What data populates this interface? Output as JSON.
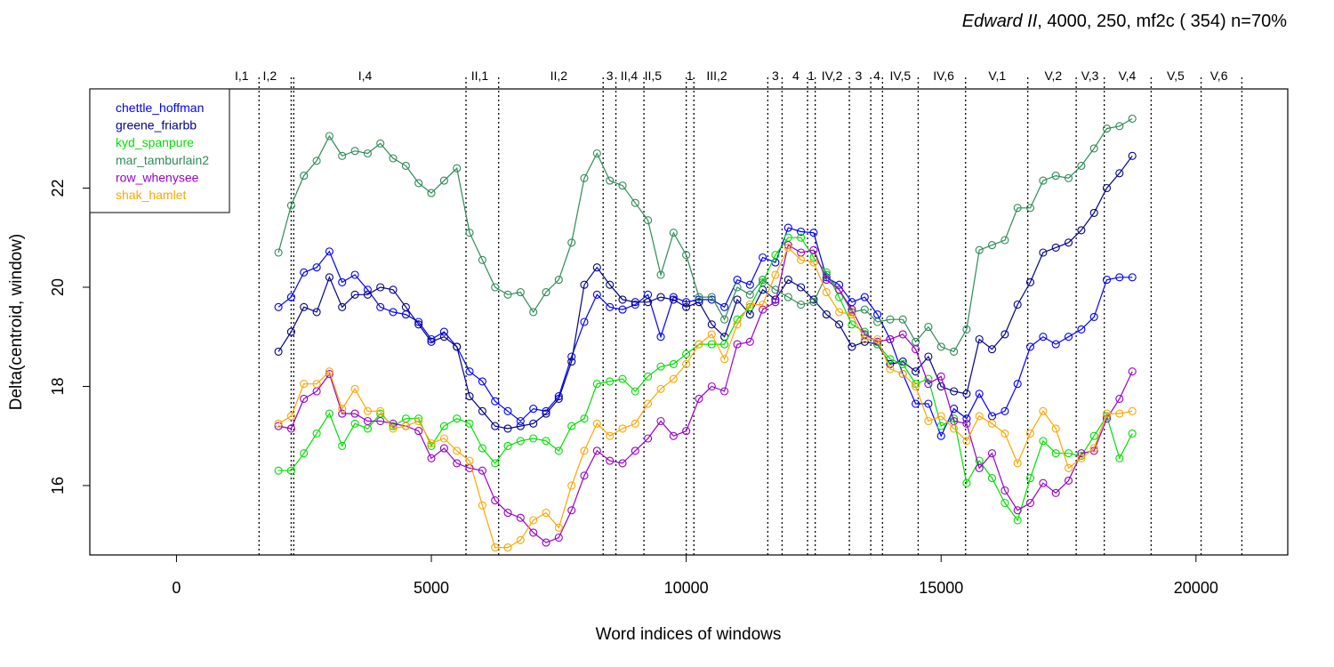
{
  "chart_data": {
    "type": "line",
    "title_italic": "Edward II",
    "title_rest": ", 4000, 250, mf2c ( 354)   n=70%",
    "xlabel": "Word indices of windows",
    "ylabel": "Delta(centroid, window)",
    "xlim": [
      -1700,
      21800
    ],
    "ylim": [
      14.6,
      24.0
    ],
    "x_ticks": [
      0,
      5000,
      10000,
      15000,
      20000
    ],
    "x_tick_labels": [
      "0",
      "5000",
      "10000",
      "15000",
      "20000"
    ],
    "y_ticks": [
      16,
      18,
      20,
      22
    ],
    "y_tick_labels": [
      "16",
      "18",
      "20",
      "22"
    ],
    "grid": false,
    "legend_position": "top-left",
    "scene_boundaries": [
      1620,
      2250,
      2300,
      5680,
      6320,
      8370,
      8620,
      9170,
      10000,
      10150,
      11600,
      11880,
      12380,
      12530,
      13200,
      13620,
      13850,
      14550,
      15480,
      16700,
      17650,
      18200,
      19120,
      20100,
      20900
    ],
    "scene_labels": [
      {
        "x": 1280,
        "text": "I,1"
      },
      {
        "x": 1830,
        "text": "I,2"
      },
      {
        "x": 3700,
        "text": "I,4"
      },
      {
        "x": 5950,
        "text": "II,1"
      },
      {
        "x": 7500,
        "text": "II,2"
      },
      {
        "x": 8500,
        "text": "3"
      },
      {
        "x": 8880,
        "text": "II,4"
      },
      {
        "x": 9350,
        "text": "II,5"
      },
      {
        "x": 10070,
        "text": "1"
      },
      {
        "x": 10600,
        "text": "III,2"
      },
      {
        "x": 11750,
        "text": "3"
      },
      {
        "x": 12150,
        "text": "4"
      },
      {
        "x": 12450,
        "text": "1"
      },
      {
        "x": 12860,
        "text": "IV,2"
      },
      {
        "x": 13380,
        "text": "3"
      },
      {
        "x": 13740,
        "text": "4"
      },
      {
        "x": 14200,
        "text": "IV,5"
      },
      {
        "x": 15050,
        "text": "IV,6"
      },
      {
        "x": 16100,
        "text": "V,1"
      },
      {
        "x": 17200,
        "text": "V,2"
      },
      {
        "x": 17920,
        "text": "V,3"
      },
      {
        "x": 18650,
        "text": "V,4"
      },
      {
        "x": 19600,
        "text": "V,5"
      },
      {
        "x": 20450,
        "text": "V,6"
      }
    ],
    "x": [
      2000,
      2250,
      2500,
      2750,
      3000,
      3250,
      3500,
      3750,
      4000,
      4250,
      4500,
      4750,
      5000,
      5250,
      5500,
      5750,
      6000,
      6250,
      6500,
      6750,
      7000,
      7250,
      7500,
      7750,
      8000,
      8250,
      8500,
      8750,
      9000,
      9250,
      9500,
      9750,
      10000,
      10250,
      10500,
      10750,
      11000,
      11250,
      11500,
      11750,
      12000,
      12250,
      12500,
      12750,
      13000,
      13250,
      13500,
      13750,
      14000,
      14250,
      14500,
      14750,
      15000,
      15250,
      15500,
      15750,
      16000,
      16250,
      16500,
      16750,
      17000,
      17250,
      17500,
      17750,
      18000,
      18250,
      18500,
      18750
    ],
    "series": [
      {
        "name": "chettle_hoffman",
        "color": "#0000ff",
        "values": [
          19.6,
          19.8,
          20.3,
          20.4,
          20.72,
          20.1,
          20.25,
          19.95,
          19.6,
          19.5,
          19.45,
          19.3,
          18.95,
          19.1,
          18.8,
          18.3,
          18.1,
          17.7,
          17.5,
          17.3,
          17.55,
          17.5,
          17.8,
          18.6,
          19.3,
          19.85,
          19.6,
          19.55,
          19.65,
          19.85,
          19.0,
          19.8,
          19.7,
          19.75,
          19.75,
          19.6,
          20.15,
          20.05,
          20.6,
          20.5,
          21.2,
          21.12,
          21.1,
          20.2,
          20.05,
          19.7,
          19.8,
          19.45,
          18.95,
          18.25,
          17.65,
          17.65,
          17.0,
          17.55,
          17.35,
          17.85,
          17.4,
          17.5,
          18.05,
          18.8,
          19.0,
          18.85,
          19.0,
          19.15,
          19.4,
          20.15,
          20.2,
          20.2
        ]
      },
      {
        "name": "greene_friarbb",
        "color": "#00008b",
        "values": [
          18.7,
          19.1,
          19.6,
          19.5,
          20.2,
          19.6,
          19.85,
          19.85,
          20.0,
          19.95,
          19.6,
          19.25,
          18.9,
          19.0,
          18.8,
          17.8,
          17.5,
          17.2,
          17.15,
          17.2,
          17.25,
          17.45,
          17.75,
          18.5,
          20.05,
          20.4,
          20.05,
          19.75,
          19.7,
          19.7,
          19.8,
          19.75,
          19.6,
          19.7,
          19.25,
          19.0,
          19.75,
          19.45,
          19.95,
          19.75,
          20.15,
          20.0,
          19.75,
          19.45,
          19.25,
          18.8,
          18.9,
          18.85,
          18.45,
          18.5,
          18.3,
          18.6,
          18.0,
          17.9,
          17.85,
          18.95,
          18.75,
          19.05,
          19.65,
          20.1,
          20.7,
          20.8,
          20.9,
          21.15,
          21.5,
          22.0,
          22.3,
          22.65
        ]
      },
      {
        "name": "kyd_spanpure",
        "color": "#00e000",
        "values": [
          16.3,
          16.3,
          16.65,
          17.05,
          17.45,
          16.8,
          17.25,
          17.15,
          17.45,
          17.2,
          17.35,
          17.35,
          16.8,
          17.2,
          17.35,
          17.25,
          16.75,
          16.45,
          16.8,
          16.9,
          16.95,
          16.9,
          16.7,
          17.2,
          17.35,
          18.05,
          18.1,
          18.15,
          17.9,
          18.2,
          18.4,
          18.45,
          18.65,
          18.85,
          18.85,
          18.85,
          19.35,
          19.6,
          20.1,
          20.65,
          21.0,
          21.0,
          20.6,
          20.3,
          19.8,
          19.25,
          19.1,
          18.85,
          18.55,
          18.45,
          18.05,
          18.15,
          17.2,
          17.35,
          16.05,
          16.5,
          16.15,
          15.65,
          15.3,
          16.15,
          16.9,
          16.65,
          16.65,
          16.6,
          17.0,
          17.4,
          16.55,
          17.05
        ]
      },
      {
        "name": "mar_tamburlain2",
        "color": "#2e8b57",
        "values": [
          20.7,
          21.65,
          22.25,
          22.55,
          23.05,
          22.65,
          22.75,
          22.7,
          22.9,
          22.6,
          22.45,
          22.1,
          21.9,
          22.15,
          22.4,
          21.1,
          20.55,
          20.0,
          19.85,
          19.9,
          19.5,
          19.9,
          20.15,
          20.9,
          22.2,
          22.7,
          22.15,
          22.05,
          21.7,
          21.35,
          20.25,
          21.1,
          20.65,
          19.8,
          19.8,
          19.35,
          20.0,
          19.85,
          20.15,
          19.95,
          19.8,
          19.65,
          19.7,
          20.25,
          19.95,
          19.5,
          19.55,
          19.3,
          19.35,
          19.35,
          18.9,
          19.2,
          18.8,
          18.7,
          19.15,
          20.75,
          20.85,
          20.95,
          21.6,
          21.6,
          22.15,
          22.25,
          22.2,
          22.45,
          22.8,
          23.2,
          23.25,
          23.4
        ]
      },
      {
        "name": "row_whenysee",
        "color": "#9900cc",
        "values": [
          17.2,
          17.15,
          17.75,
          17.9,
          18.25,
          17.45,
          17.45,
          17.3,
          17.3,
          17.25,
          17.2,
          17.1,
          16.55,
          16.75,
          16.45,
          16.35,
          16.3,
          15.7,
          15.45,
          15.35,
          15.05,
          14.85,
          14.95,
          15.5,
          16.2,
          16.7,
          16.5,
          16.45,
          16.7,
          16.95,
          17.3,
          17.0,
          17.1,
          17.75,
          18.0,
          17.9,
          18.85,
          18.9,
          19.55,
          19.7,
          20.85,
          20.7,
          20.75,
          20.15,
          19.95,
          19.55,
          19.05,
          18.9,
          18.95,
          19.05,
          18.75,
          18.05,
          18.2,
          17.3,
          17.25,
          16.35,
          16.65,
          15.9,
          15.5,
          15.65,
          16.05,
          15.85,
          16.1,
          16.65,
          16.7,
          17.35,
          17.75,
          18.3
        ]
      },
      {
        "name": "shak_hamlet",
        "color": "#ffa500",
        "values": [
          17.25,
          17.4,
          18.05,
          18.05,
          18.3,
          17.55,
          17.95,
          17.5,
          17.5,
          17.15,
          17.2,
          17.3,
          16.85,
          16.95,
          16.7,
          16.5,
          15.6,
          14.75,
          14.75,
          14.9,
          15.3,
          15.45,
          15.15,
          16.0,
          16.7,
          17.25,
          17.0,
          17.15,
          17.25,
          17.65,
          17.95,
          18.15,
          18.45,
          18.85,
          19.05,
          18.55,
          19.25,
          19.65,
          19.65,
          20.25,
          20.8,
          20.55,
          20.5,
          19.9,
          19.5,
          19.45,
          18.95,
          18.95,
          18.35,
          18.25,
          18.0,
          17.3,
          17.4,
          17.15,
          16.9,
          17.4,
          17.25,
          17.05,
          16.45,
          17.05,
          17.5,
          17.15,
          16.35,
          16.55,
          16.75,
          17.45,
          17.45,
          17.5
        ]
      }
    ]
  }
}
